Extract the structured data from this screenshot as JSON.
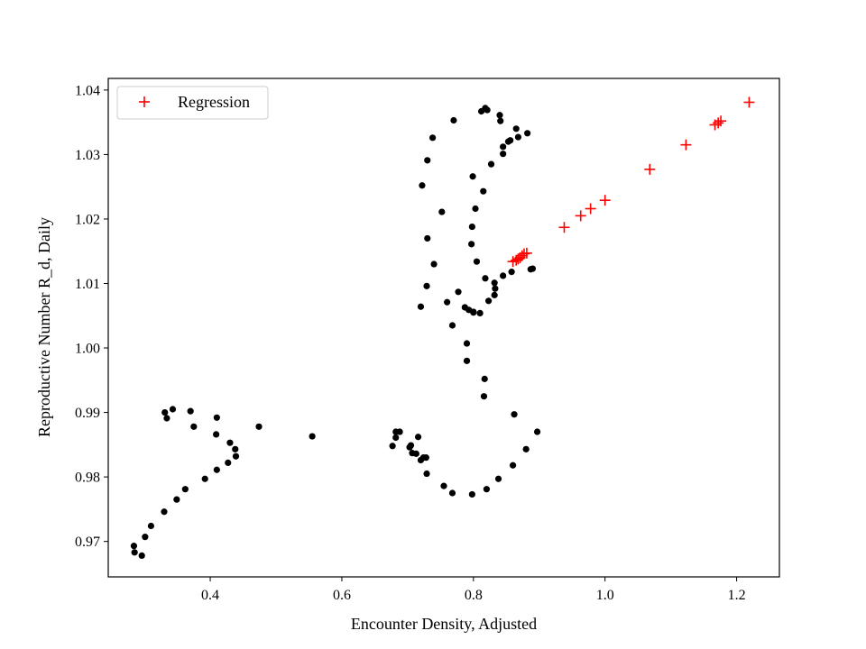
{
  "chart_data": {
    "type": "scatter",
    "title": "",
    "xlabel": "Encounter Density, Adjusted",
    "ylabel": "Reproductive Number R_d, Daily",
    "xlim": [
      0.245,
      1.265
    ],
    "ylim": [
      0.9645,
      1.0418
    ],
    "xticks": [
      0.4,
      0.6,
      0.8,
      1.0,
      1.2
    ],
    "xtick_labels": [
      "0.4",
      "0.6",
      "0.8",
      "1.0",
      "1.2"
    ],
    "yticks": [
      0.97,
      0.98,
      0.99,
      1.0,
      1.01,
      1.02,
      1.03,
      1.04
    ],
    "ytick_labels": [
      "0.97",
      "0.98",
      "0.99",
      "1.00",
      "1.01",
      "1.02",
      "1.03",
      "1.04"
    ],
    "grid": false,
    "legend": {
      "position": "top-left",
      "entries": [
        "Regression"
      ]
    },
    "colors": {
      "observed": "#000000",
      "regression": "#ff0000"
    },
    "series": [
      {
        "marker": "dot",
        "color": "#000000",
        "points": [
          [
            0.284,
            0.9693
          ],
          [
            0.285,
            0.9683
          ],
          [
            0.296,
            0.9678
          ],
          [
            0.301,
            0.9707
          ],
          [
            0.31,
            0.9724
          ],
          [
            0.33,
            0.9746
          ],
          [
            0.349,
            0.9765
          ],
          [
            0.362,
            0.9781
          ],
          [
            0.392,
            0.9797
          ],
          [
            0.41,
            0.9811
          ],
          [
            0.427,
            0.9822
          ],
          [
            0.439,
            0.9832
          ],
          [
            0.438,
            0.9843
          ],
          [
            0.43,
            0.9853
          ],
          [
            0.409,
            0.9866
          ],
          [
            0.474,
            0.9878
          ],
          [
            0.375,
            0.9878
          ],
          [
            0.334,
            0.9891
          ],
          [
            0.41,
            0.9892
          ],
          [
            0.331,
            0.99
          ],
          [
            0.343,
            0.9905
          ],
          [
            0.37,
            0.9902
          ],
          [
            0.555,
            0.9863
          ],
          [
            0.677,
            0.9848
          ],
          [
            0.682,
            0.987
          ],
          [
            0.688,
            0.987
          ],
          [
            0.682,
            0.9861
          ],
          [
            0.703,
            0.9846
          ],
          [
            0.705,
            0.9849
          ],
          [
            0.707,
            0.9837
          ],
          [
            0.713,
            0.9836
          ],
          [
            0.716,
            0.9862
          ],
          [
            0.72,
            0.9826
          ],
          [
            0.724,
            0.983
          ],
          [
            0.728,
            0.983
          ],
          [
            0.729,
            0.9805
          ],
          [
            0.755,
            0.9786
          ],
          [
            0.768,
            0.9775
          ],
          [
            0.798,
            0.9773
          ],
          [
            0.82,
            0.9781
          ],
          [
            0.838,
            0.9797
          ],
          [
            0.86,
            0.9818
          ],
          [
            0.88,
            0.9843
          ],
          [
            0.897,
            0.987
          ],
          [
            0.862,
            0.9897
          ],
          [
            0.816,
            0.9925
          ],
          [
            0.817,
            0.9952
          ],
          [
            0.79,
            0.998
          ],
          [
            0.79,
            1.0007
          ],
          [
            0.768,
            1.0035
          ],
          [
            0.76,
            1.0071
          ],
          [
            0.787,
            1.0063
          ],
          [
            0.793,
            1.0059
          ],
          [
            0.8,
            1.0055
          ],
          [
            0.81,
            1.0054
          ],
          [
            0.8,
            1.0056
          ],
          [
            0.777,
            1.0087
          ],
          [
            0.823,
            1.0073
          ],
          [
            0.832,
            1.0082
          ],
          [
            0.833,
            1.0092
          ],
          [
            0.832,
            1.0101
          ],
          [
            0.72,
            1.0064
          ],
          [
            0.729,
            1.0096
          ],
          [
            0.818,
            1.0108
          ],
          [
            0.845,
            1.0112
          ],
          [
            0.858,
            1.0118
          ],
          [
            0.887,
            1.0122
          ],
          [
            0.89,
            1.0123
          ],
          [
            0.74,
            1.013
          ],
          [
            0.805,
            1.0134
          ],
          [
            0.73,
            1.017
          ],
          [
            0.797,
            1.0161
          ],
          [
            0.798,
            1.0188
          ],
          [
            0.752,
            1.0211
          ],
          [
            0.803,
            1.0216
          ],
          [
            0.815,
            1.0243
          ],
          [
            0.722,
            1.0252
          ],
          [
            0.799,
            1.0266
          ],
          [
            0.827,
            1.0285
          ],
          [
            0.73,
            1.0291
          ],
          [
            0.845,
            1.0301
          ],
          [
            0.845,
            1.0312
          ],
          [
            0.853,
            1.032
          ],
          [
            0.856,
            1.0322
          ],
          [
            0.868,
            1.0327
          ],
          [
            0.882,
            1.0333
          ],
          [
            0.738,
            1.0326
          ],
          [
            0.865,
            1.034
          ],
          [
            0.77,
            1.0353
          ],
          [
            0.841,
            1.0352
          ],
          [
            0.84,
            1.0361
          ],
          [
            0.812,
            1.0367
          ],
          [
            0.818,
            1.0372
          ],
          [
            0.821,
            1.0369
          ]
        ]
      },
      {
        "name": "Regression",
        "marker": "plus",
        "color": "#ff0000",
        "points": [
          [
            0.86,
            1.0134
          ],
          [
            0.865,
            1.0136
          ],
          [
            0.868,
            1.0138
          ],
          [
            0.871,
            1.014
          ],
          [
            0.874,
            1.0143
          ],
          [
            0.877,
            1.0146
          ],
          [
            0.881,
            1.0147
          ],
          [
            0.938,
            1.0187
          ],
          [
            0.963,
            1.0205
          ],
          [
            0.978,
            1.0216
          ],
          [
            1.0,
            1.0229
          ],
          [
            1.068,
            1.0277
          ],
          [
            1.123,
            1.0315
          ],
          [
            1.167,
            1.0346
          ],
          [
            1.172,
            1.0349
          ],
          [
            1.176,
            1.0352
          ],
          [
            1.219,
            1.0381
          ]
        ]
      }
    ]
  }
}
